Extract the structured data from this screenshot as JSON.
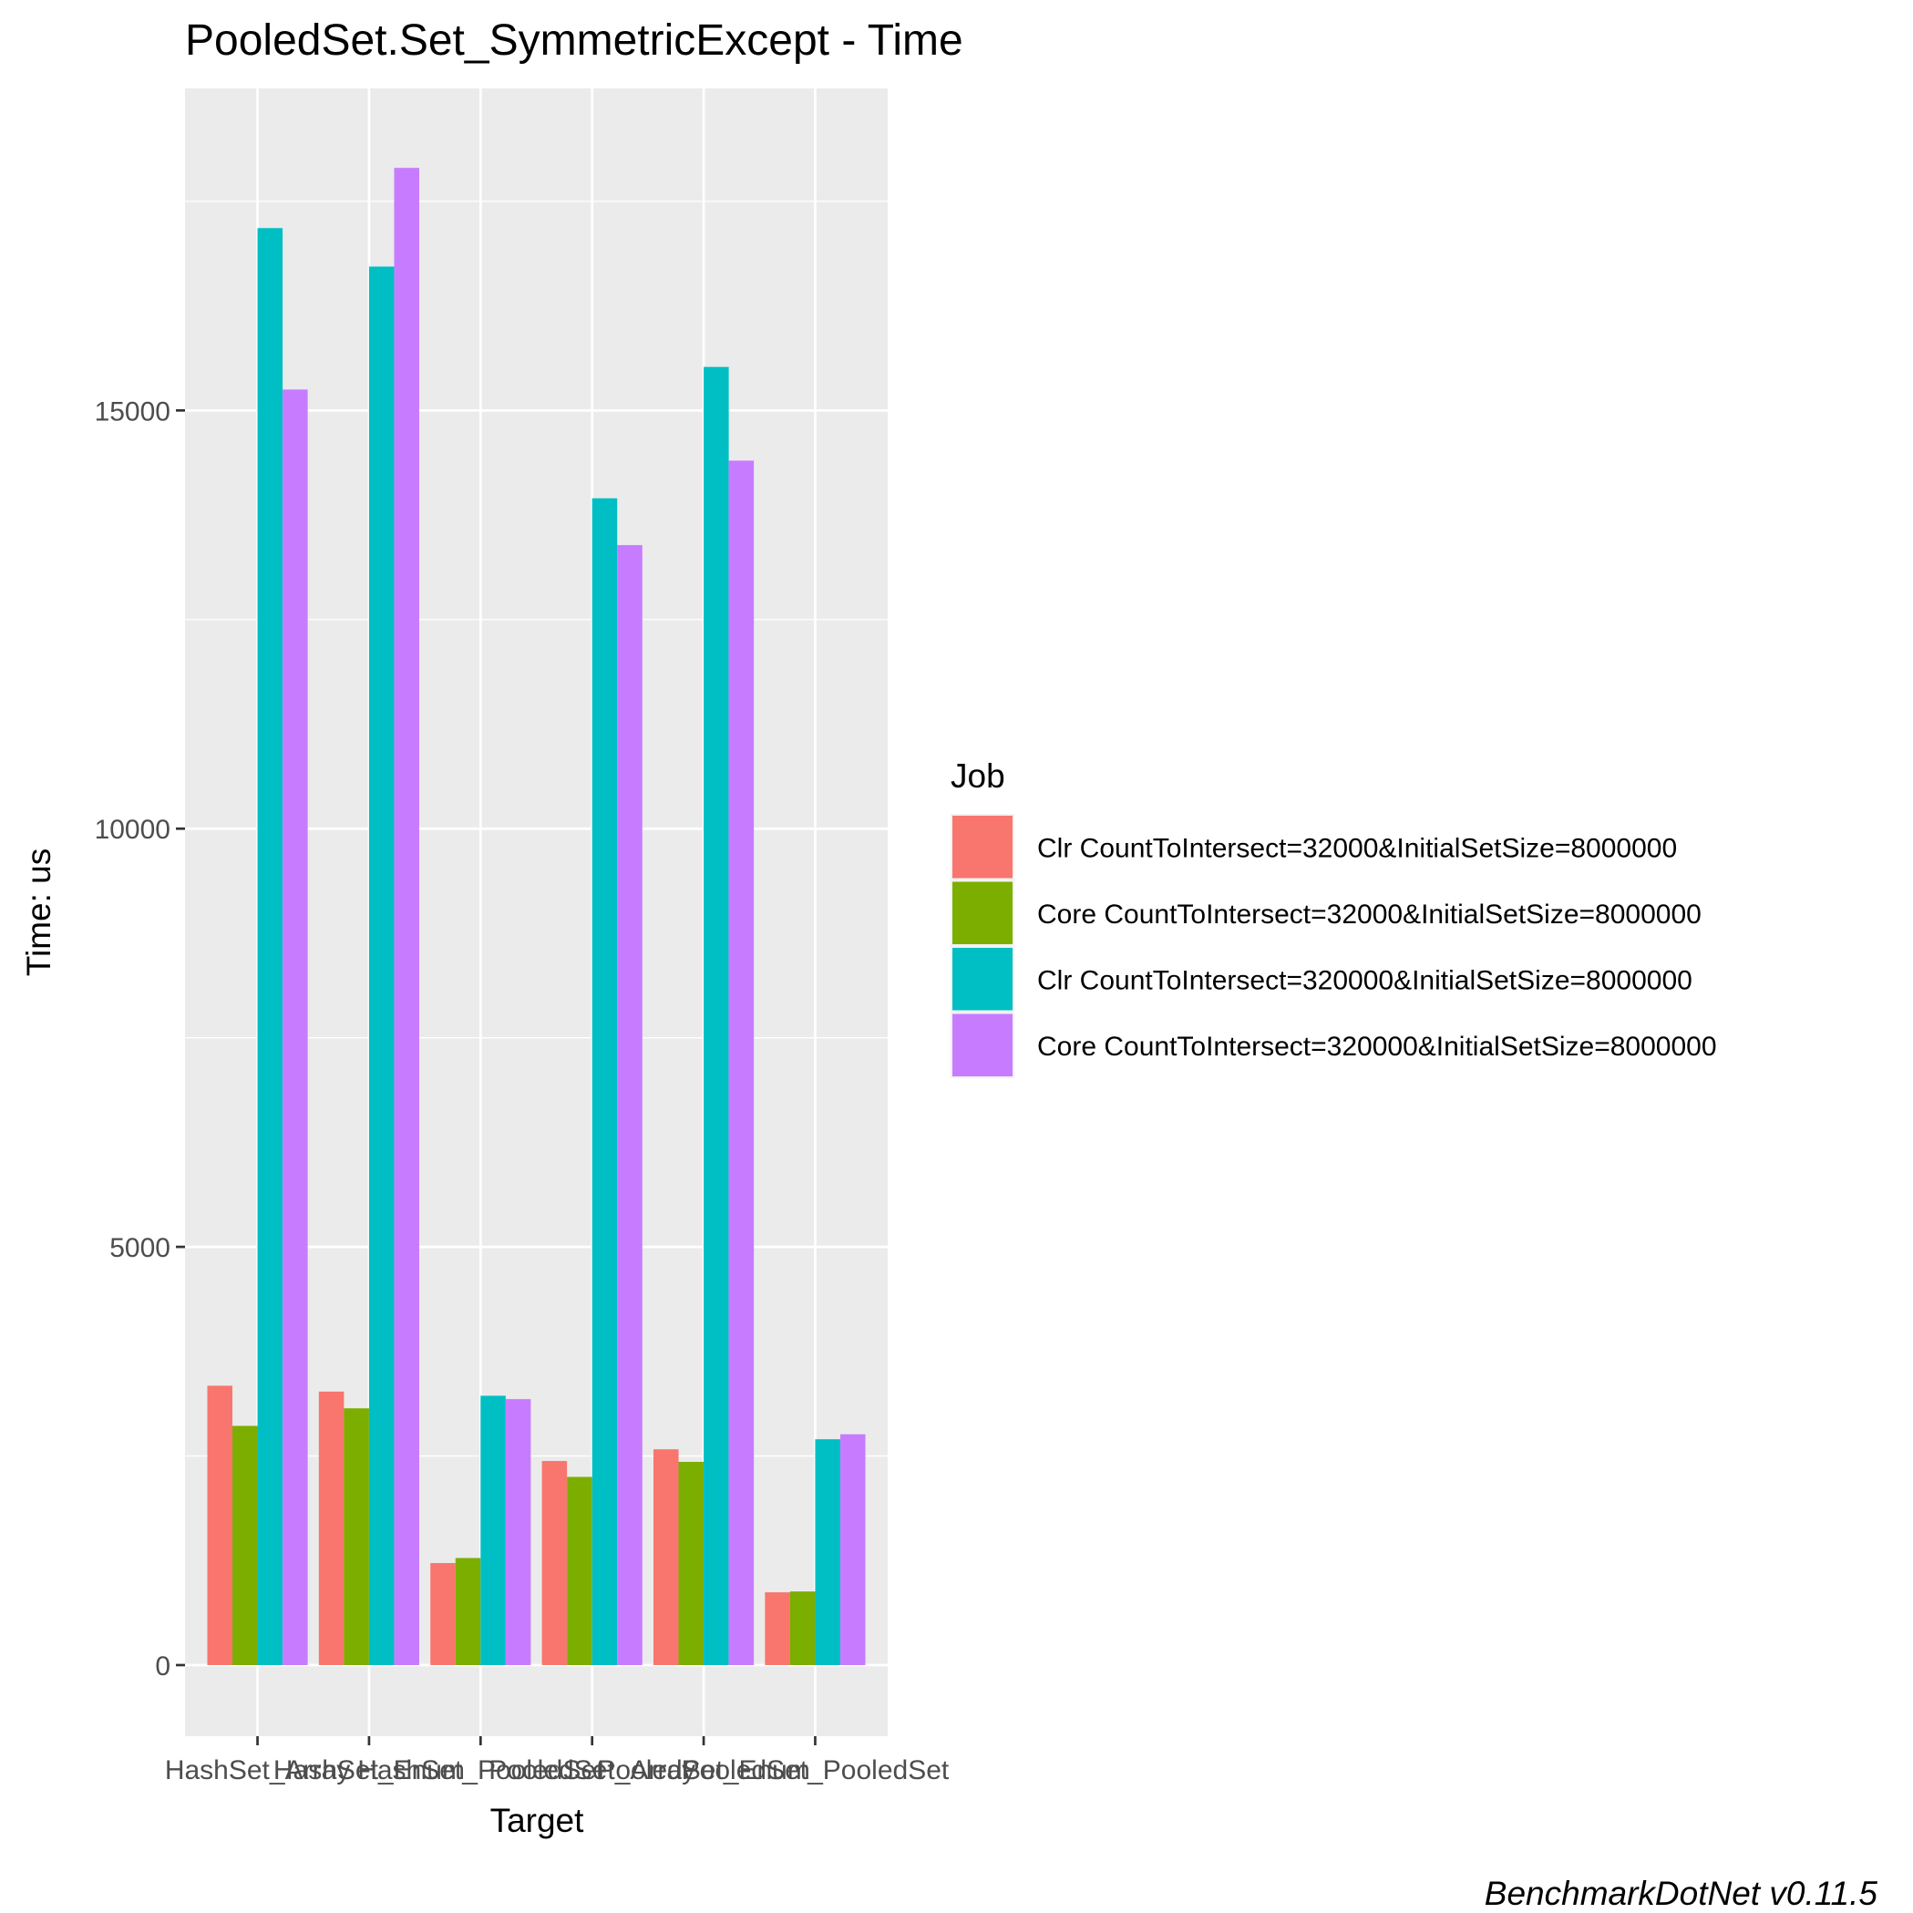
{
  "chart_data": {
    "type": "bar",
    "title": "PooledSet.Set_SymmetricExcept - Time",
    "xlabel": "Target",
    "ylabel": "Time: us",
    "caption": "BenchmarkDotNet v0.11.5",
    "categories": [
      "HashSet_Array",
      "HashSet_Enum",
      "HashSet_PooledSet",
      "PooledSet_Array",
      "PooledSet_Enum",
      "PooledSet_PooledSet"
    ],
    "tick_labels": [
      "HashSet_Array",
      "HashSet_Enum",
      "HashSet_PooledSet",
      "PooledSet_Array",
      "PooledSet_Enum",
      "PooledSet_PooledSet"
    ],
    "series": [
      {
        "name": "Clr CountToIntersect=32000&InitialSetSize=8000000",
        "color": "#F8766D",
        "values": [
          3340,
          3270,
          1220,
          2440,
          2580,
          870
        ]
      },
      {
        "name": "Core CountToIntersect=32000&InitialSetSize=8000000",
        "color": "#7CAE00",
        "values": [
          2860,
          3070,
          1280,
          2250,
          2430,
          880
        ]
      },
      {
        "name": "Clr CountToIntersect=320000&InitialSetSize=8000000",
        "color": "#00BFC4",
        "values": [
          17180,
          16720,
          3220,
          13950,
          15520,
          2700
        ]
      },
      {
        "name": "Core CountToIntersect=320000&InitialSetSize=8000000",
        "color": "#C77CFF",
        "values": [
          15250,
          17900,
          3180,
          13390,
          14400,
          2760
        ]
      }
    ],
    "legend": {
      "title": "Job",
      "position": "right"
    },
    "yticks": [
      0,
      5000,
      10000,
      15000
    ],
    "ylim": [
      -850,
      18850
    ],
    "grid": true,
    "panel_background": "#EBEBEB",
    "grid_color": "#FFFFFF"
  }
}
